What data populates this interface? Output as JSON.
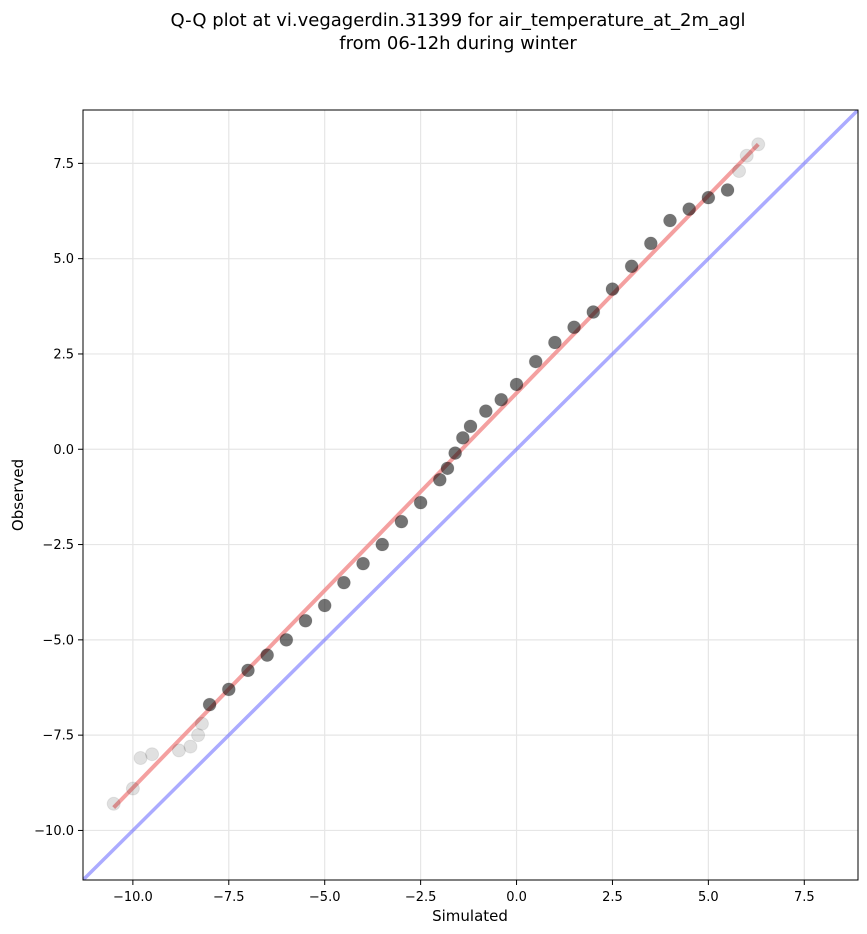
{
  "chart_data": {
    "type": "scatter",
    "title_line1": "Q-Q plot at vi.vegagerdin.31399 for air_temperature_at_2m_agl",
    "title_line2": "from 06-12h during winter",
    "xlabel": "Simulated",
    "ylabel": "Observed",
    "xlim": [
      -11.3,
      8.9
    ],
    "ylim": [
      -11.3,
      8.9
    ],
    "xticks": [
      -10.0,
      -7.5,
      -5.0,
      -2.5,
      0.0,
      2.5,
      5.0,
      7.5
    ],
    "yticks": [
      -10.0,
      -7.5,
      -5.0,
      -2.5,
      0.0,
      2.5,
      5.0,
      7.5
    ],
    "xtick_labels": [
      "−10.0",
      "−7.5",
      "−5.0",
      "−2.5",
      "0.0",
      "2.5",
      "5.0",
      "7.5"
    ],
    "ytick_labels": [
      "−10.0",
      "−7.5",
      "−5.0",
      "−2.5",
      "0.0",
      "2.5",
      "5.0",
      "7.5"
    ],
    "grid": true,
    "colors": {
      "points": "#000000",
      "fit_line": "#f08080",
      "identity_line": "#6666ff",
      "grid": "#e6e6e6"
    },
    "fit_line": {
      "x": [
        -10.5,
        6.3
      ],
      "y": [
        -9.4,
        8.0
      ]
    },
    "identity_line": {
      "x": [
        -11.3,
        8.9
      ],
      "y": [
        -11.3,
        8.9
      ]
    },
    "quantile_points": {
      "x": [
        -10.5,
        -10.0,
        -9.8,
        -9.5,
        -8.8,
        -8.5,
        -8.3,
        -8.2,
        -8.0,
        -7.5,
        -7.0,
        -6.5,
        -6.0,
        -5.5,
        -5.0,
        -4.5,
        -4.0,
        -3.5,
        -3.0,
        -2.5,
        -2.0,
        -1.8,
        -1.6,
        -1.4,
        -1.2,
        -0.8,
        -0.4,
        0.0,
        0.5,
        1.0,
        1.5,
        2.0,
        2.5,
        3.0,
        3.5,
        4.0,
        4.5,
        5.0,
        5.5,
        5.8,
        6.0,
        6.3
      ],
      "y": [
        -9.3,
        -8.9,
        -8.1,
        -8.0,
        -7.9,
        -7.8,
        -7.5,
        -7.2,
        -6.7,
        -6.3,
        -5.8,
        -5.4,
        -5.0,
        -4.5,
        -4.1,
        -3.5,
        -3.0,
        -2.5,
        -1.9,
        -1.4,
        -0.8,
        -0.5,
        -0.1,
        0.3,
        0.6,
        1.0,
        1.3,
        1.7,
        2.3,
        2.8,
        3.2,
        3.6,
        4.2,
        4.8,
        5.4,
        6.0,
        6.3,
        6.6,
        6.8,
        7.3,
        7.7,
        8.0
      ]
    }
  }
}
